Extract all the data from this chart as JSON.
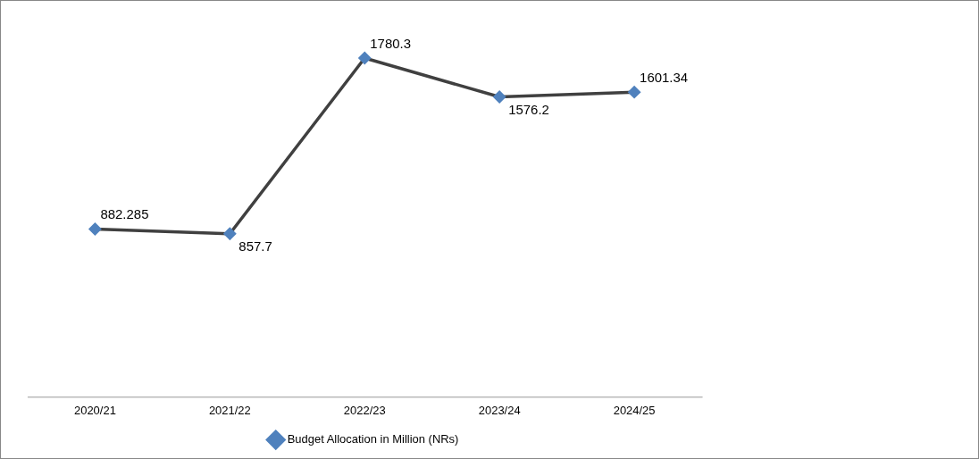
{
  "chart_data": {
    "type": "line",
    "categories": [
      "2020/21",
      "2021/22",
      "2022/23",
      "2023/24",
      "2024/25"
    ],
    "series": [
      {
        "name": "Budget Allocation in Million (NRs)",
        "color": "#404040",
        "values": [
          882.285,
          857.7,
          1780.3,
          1576.2,
          1601.34
        ]
      }
    ],
    "data_labels": true,
    "legend": "bottom",
    "grid": false,
    "marker": "diamond",
    "line_style": "solid"
  }
}
